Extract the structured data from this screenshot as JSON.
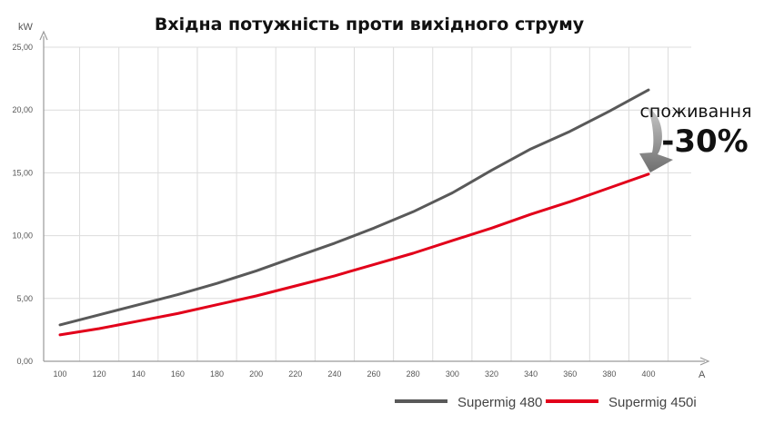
{
  "chart_data": {
    "type": "line",
    "title": "Вхідна потужність проти вихідного струму",
    "ylabel": "kW",
    "xlabel": "A",
    "x": [
      100,
      120,
      140,
      160,
      180,
      200,
      220,
      240,
      260,
      280,
      300,
      320,
      340,
      360,
      380,
      400
    ],
    "x_ticks": [
      "100",
      "120",
      "140",
      "160",
      "180",
      "200",
      "220",
      "240",
      "260",
      "280",
      "300",
      "320",
      "340",
      "360",
      "380",
      "400"
    ],
    "y_ticks": [
      "0,00",
      "5,00",
      "10,00",
      "15,00",
      "20,00",
      "25,00"
    ],
    "xlim": [
      95,
      420
    ],
    "ylim": [
      0,
      25
    ],
    "grid": true,
    "legend_position": "bottom-right",
    "series": [
      {
        "name": "Supermig 480",
        "color": "#595959",
        "values": [
          2.9,
          3.7,
          4.5,
          5.3,
          6.2,
          7.2,
          8.3,
          9.4,
          10.6,
          11.9,
          13.4,
          15.2,
          16.9,
          18.3,
          19.9,
          21.6
        ]
      },
      {
        "name": "Supermig 450i",
        "color": "#e2001a",
        "values": [
          2.1,
          2.6,
          3.2,
          3.8,
          4.5,
          5.2,
          6.0,
          6.8,
          7.7,
          8.6,
          9.6,
          10.6,
          11.7,
          12.7,
          13.8,
          14.9
        ]
      }
    ],
    "annotation": {
      "line1": "споживання",
      "line2": "-30%",
      "arrow_color": "#808080"
    }
  }
}
